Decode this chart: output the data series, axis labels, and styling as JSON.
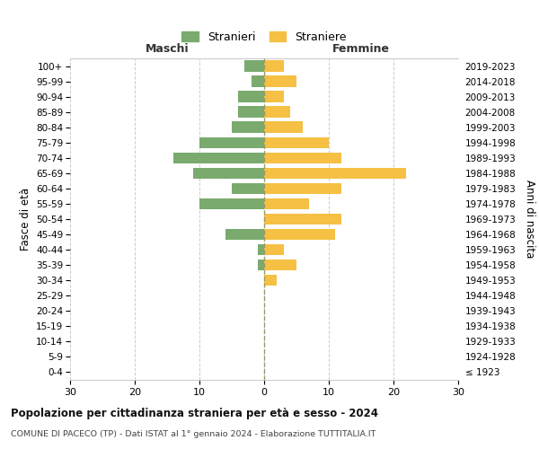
{
  "age_groups": [
    "0-4",
    "5-9",
    "10-14",
    "15-19",
    "20-24",
    "25-29",
    "30-34",
    "35-39",
    "40-44",
    "45-49",
    "50-54",
    "55-59",
    "60-64",
    "65-69",
    "70-74",
    "75-79",
    "80-84",
    "85-89",
    "90-94",
    "95-99",
    "100+"
  ],
  "birth_years": [
    "2019-2023",
    "2014-2018",
    "2009-2013",
    "2004-2008",
    "1999-2003",
    "1994-1998",
    "1989-1993",
    "1984-1988",
    "1979-1983",
    "1974-1978",
    "1969-1973",
    "1964-1968",
    "1959-1963",
    "1954-1958",
    "1949-1953",
    "1944-1948",
    "1939-1943",
    "1934-1938",
    "1929-1933",
    "1924-1928",
    "≤ 1923"
  ],
  "males": [
    3,
    2,
    4,
    4,
    5,
    10,
    14,
    11,
    5,
    10,
    0,
    6,
    1,
    1,
    0,
    0,
    0,
    0,
    0,
    0,
    0
  ],
  "females": [
    3,
    5,
    3,
    4,
    6,
    10,
    12,
    22,
    12,
    7,
    12,
    11,
    3,
    5,
    2,
    0,
    0,
    0,
    0,
    0,
    0
  ],
  "male_color": "#7aaa6e",
  "female_color": "#f5c044",
  "male_label": "Stranieri",
  "female_label": "Straniere",
  "title": "Popolazione per cittadinanza straniera per età e sesso - 2024",
  "subtitle": "COMUNE DI PACECO (TP) - Dati ISTAT al 1° gennaio 2024 - Elaborazione TUTTITALIA.IT",
  "left_header": "Maschi",
  "right_header": "Femmine",
  "ylabel_left": "Fasce di età",
  "ylabel_right": "Anni di nascita",
  "xlim": 30,
  "background_color": "#ffffff",
  "grid_color": "#cccccc",
  "bar_height": 0.72
}
